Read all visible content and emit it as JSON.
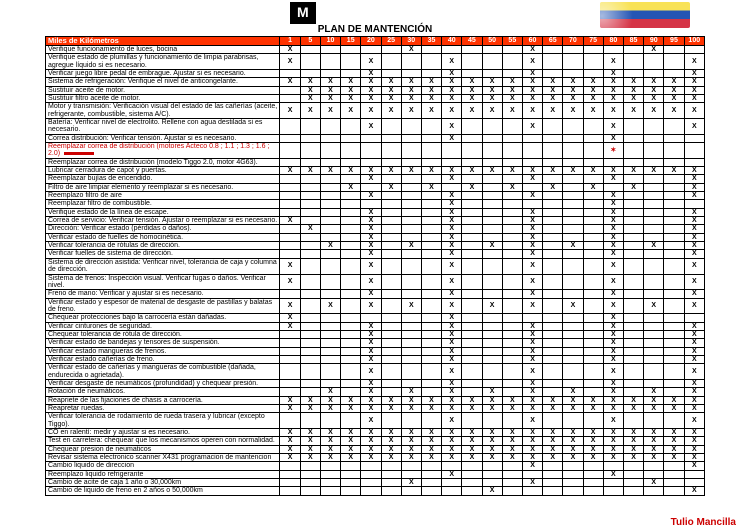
{
  "title": "PLAN DE MANTENCIÓN",
  "header_label": "Miles de Kilómetros",
  "km_cols": [
    "1",
    "5",
    "10",
    "15",
    "20",
    "25",
    "30",
    "35",
    "40",
    "45",
    "50",
    "55",
    "60",
    "65",
    "70",
    "75",
    "80",
    "85",
    "90",
    "95",
    "100"
  ],
  "footer": "Tulio Mancilla",
  "colors": {
    "header_bg": "#ff3300",
    "highlight_text": "#cc0000"
  },
  "rows": [
    {
      "desc": "Verifique funcionamiento de luces, bocina",
      "marks": [
        "X",
        "",
        "",
        "",
        "",
        "",
        "X",
        "",
        "",
        "",
        "",
        "",
        "X",
        "",
        "",
        "",
        "",
        "",
        "X",
        "",
        ""
      ]
    },
    {
      "desc": "Verifique estado de plumillas y funcionamiento de limpia parabrisas, agregue líquido si es necesario.",
      "marks": [
        "X",
        "",
        "",
        "",
        "X",
        "",
        "",
        "",
        "X",
        "",
        "",
        "",
        "X",
        "",
        "",
        "",
        "X",
        "",
        "",
        "",
        "X"
      ]
    },
    {
      "desc": "Verificar juego libre pedal de embrague. Ajustar si es necesario.",
      "marks": [
        "",
        "",
        "",
        "",
        "X",
        "",
        "",
        "",
        "X",
        "",
        "",
        "",
        "X",
        "",
        "",
        "",
        "X",
        "",
        "",
        "",
        "X"
      ]
    },
    {
      "desc": "Sistema de refrigeración: Verifique el nivel de anticongelante.",
      "marks": [
        "X",
        "X",
        "X",
        "X",
        "X",
        "X",
        "X",
        "X",
        "X",
        "X",
        "X",
        "X",
        "X",
        "X",
        "X",
        "X",
        "X",
        "X",
        "X",
        "X",
        "X"
      ]
    },
    {
      "desc": "Sustituir aceite de motor.",
      "marks": [
        "",
        "X",
        "X",
        "X",
        "X",
        "X",
        "X",
        "X",
        "X",
        "X",
        "X",
        "X",
        "X",
        "X",
        "X",
        "X",
        "X",
        "X",
        "X",
        "X",
        "X"
      ]
    },
    {
      "desc": "Sustituir filtro aceite de motor.",
      "marks": [
        "",
        "X",
        "X",
        "X",
        "X",
        "X",
        "X",
        "X",
        "X",
        "X",
        "X",
        "X",
        "X",
        "X",
        "X",
        "X",
        "X",
        "X",
        "X",
        "X",
        "X"
      ]
    },
    {
      "desc": "Motor y transmisión: Verificación visual del estado de las cañerías (aceite, refrigerante, combustible, sistema A/C).",
      "marks": [
        "X",
        "X",
        "X",
        "X",
        "X",
        "X",
        "X",
        "X",
        "X",
        "X",
        "X",
        "X",
        "X",
        "X",
        "X",
        "X",
        "X",
        "X",
        "X",
        "X",
        "X"
      ]
    },
    {
      "desc": "Batería: Verificar nivel de electrolito. Rellene con agua destilada si es necesario.",
      "marks": [
        "",
        "",
        "",
        "",
        "X",
        "",
        "",
        "",
        "X",
        "",
        "",
        "",
        "X",
        "",
        "",
        "",
        "X",
        "",
        "",
        "",
        "X"
      ]
    },
    {
      "desc": "Correa distribución: Verificar tensión. Ajustar si es necesario.",
      "marks": [
        "",
        "",
        "",
        "",
        "",
        "",
        "",
        "",
        "X",
        "",
        "",
        "",
        "",
        "",
        "",
        "",
        "X",
        "",
        "",
        "",
        ""
      ]
    },
    {
      "desc": "Reemplazar correa de distribución (motores Acteco 0.8 ; 1.1 ; 1.3 ; 1.6 ; 2.0)",
      "hl": true,
      "redline": true,
      "marks": [
        "",
        "",
        "",
        "",
        "",
        "",
        "",
        "",
        "",
        "",
        "",
        "",
        "",
        "",
        "",
        "",
        "*",
        "",
        "",
        "",
        ""
      ]
    },
    {
      "desc": "Reemplazar correa de distribución (modelo Tiggo 2.0, motor 4G63).",
      "marks": [
        "",
        "",
        "",
        "",
        "",
        "",
        "",
        "",
        "",
        "",
        "",
        "",
        "",
        "",
        "",
        "",
        "",
        "",
        "",
        "",
        ""
      ]
    },
    {
      "desc": "Lubricar cerradura de capot y puertas.",
      "marks": [
        "X",
        "X",
        "X",
        "X",
        "X",
        "X",
        "X",
        "X",
        "X",
        "X",
        "X",
        "X",
        "X",
        "X",
        "X",
        "X",
        "X",
        "X",
        "X",
        "X",
        "X"
      ]
    },
    {
      "desc": "Reemplazar bujías de encendido.",
      "marks": [
        "",
        "",
        "",
        "",
        "X",
        "",
        "",
        "",
        "X",
        "",
        "",
        "",
        "X",
        "",
        "",
        "",
        "X",
        "",
        "",
        "",
        "X"
      ]
    },
    {
      "desc": "Filtro de aire limpiar elemento y reemplazar si es necesario.",
      "marks": [
        "",
        "",
        "",
        "X",
        "",
        "X",
        "",
        "X",
        "",
        "X",
        "",
        "X",
        "",
        "X",
        "",
        "X",
        "",
        "X",
        "",
        "",
        "X"
      ]
    },
    {
      "desc": "Reemplazo filtro de aire",
      "marks": [
        "",
        "",
        "",
        "",
        "X",
        "",
        "",
        "",
        "X",
        "",
        "",
        "",
        "X",
        "",
        "",
        "",
        "X",
        "",
        "",
        "",
        "X"
      ]
    },
    {
      "desc": "Reemplazar filtro de combustible.",
      "marks": [
        "",
        "",
        "",
        "",
        "",
        "",
        "",
        "",
        "X",
        "",
        "",
        "",
        "",
        "",
        "",
        "",
        "X",
        "",
        "",
        "",
        ""
      ]
    },
    {
      "desc": "Verifique estado de la línea de escape.",
      "marks": [
        "",
        "",
        "",
        "",
        "X",
        "",
        "",
        "",
        "X",
        "",
        "",
        "",
        "X",
        "",
        "",
        "",
        "X",
        "",
        "",
        "",
        "X"
      ]
    },
    {
      "desc": "Correa de servicio: Verificar tensión. Ajustar o reemplazar si es necesario.",
      "marks": [
        "X",
        "",
        "",
        "",
        "X",
        "",
        "",
        "",
        "X",
        "",
        "",
        "",
        "X",
        "",
        "",
        "",
        "X",
        "",
        "",
        "",
        "X"
      ]
    },
    {
      "desc": "Dirección: Verificar estado (pérdidas o daños).",
      "marks": [
        "",
        "X",
        "",
        "",
        "X",
        "",
        "",
        "",
        "X",
        "",
        "",
        "",
        "X",
        "",
        "",
        "",
        "X",
        "",
        "",
        "",
        "X"
      ]
    },
    {
      "desc": "Verificar estado de fuelles de homocinética.",
      "marks": [
        "",
        "",
        "",
        "",
        "X",
        "",
        "",
        "",
        "X",
        "",
        "",
        "",
        "X",
        "",
        "",
        "",
        "X",
        "",
        "",
        "",
        "X"
      ]
    },
    {
      "desc": "Verificar tolerancia de rótulas de dirección.",
      "marks": [
        "",
        "",
        "X",
        "",
        "X",
        "",
        "X",
        "",
        "X",
        "",
        "X",
        "",
        "X",
        "",
        "X",
        "",
        "X",
        "",
        "X",
        "",
        "X"
      ]
    },
    {
      "desc": "Verificar fuelles de sistema de dirección.",
      "marks": [
        "",
        "",
        "",
        "",
        "X",
        "",
        "",
        "",
        "X",
        "",
        "",
        "",
        "X",
        "",
        "",
        "",
        "X",
        "",
        "",
        "",
        "X"
      ]
    },
    {
      "desc": "Sistema de dirección asistida: Verificar nivel, tolerancia de caja y columna de dirección.",
      "marks": [
        "X",
        "",
        "",
        "",
        "X",
        "",
        "",
        "",
        "X",
        "",
        "",
        "",
        "X",
        "",
        "",
        "",
        "X",
        "",
        "",
        "",
        "X"
      ]
    },
    {
      "desc": "Sistema de frenos: Inspección visual. Verificar fugas o daños. Verificar nivel.",
      "marks": [
        "X",
        "",
        "",
        "",
        "X",
        "",
        "",
        "",
        "X",
        "",
        "",
        "",
        "X",
        "",
        "",
        "",
        "X",
        "",
        "",
        "",
        "X"
      ]
    },
    {
      "desc": "Freno de mano: Verificar y ajustar si es necesario.",
      "marks": [
        "",
        "",
        "",
        "",
        "X",
        "",
        "",
        "",
        "X",
        "",
        "",
        "",
        "X",
        "",
        "",
        "",
        "X",
        "",
        "",
        "",
        "X"
      ]
    },
    {
      "desc": "Verificar estado y espesor de material de desgaste de pastillas y balatas de freno.",
      "marks": [
        "X",
        "",
        "X",
        "",
        "X",
        "",
        "X",
        "",
        "X",
        "",
        "X",
        "",
        "X",
        "",
        "X",
        "",
        "X",
        "",
        "X",
        "",
        "X"
      ]
    },
    {
      "desc": "Chequear protecciones bajo la carrocería están dañadas.",
      "marks": [
        "X",
        "",
        "",
        "",
        "",
        "",
        "",
        "",
        "X",
        "",
        "",
        "",
        "",
        "",
        "",
        "",
        "X",
        "",
        "",
        "",
        ""
      ]
    },
    {
      "desc": "Verificar cinturones de seguridad.",
      "marks": [
        "X",
        "",
        "",
        "",
        "X",
        "",
        "",
        "",
        "X",
        "",
        "",
        "",
        "X",
        "",
        "",
        "",
        "X",
        "",
        "",
        "",
        "X"
      ]
    },
    {
      "desc": "Chequear tolerancia de rótula de dirección.",
      "marks": [
        "",
        "",
        "",
        "",
        "X",
        "",
        "",
        "",
        "X",
        "",
        "",
        "",
        "X",
        "",
        "",
        "",
        "X",
        "",
        "",
        "",
        "X"
      ]
    },
    {
      "desc": "Verificar estado de bandejas y tensores de suspensión.",
      "marks": [
        "",
        "",
        "",
        "",
        "X",
        "",
        "",
        "",
        "X",
        "",
        "",
        "",
        "X",
        "",
        "",
        "",
        "X",
        "",
        "",
        "",
        "X"
      ]
    },
    {
      "desc": "Verificar estado mangueras de frenos.",
      "marks": [
        "",
        "",
        "",
        "",
        "X",
        "",
        "",
        "",
        "X",
        "",
        "",
        "",
        "X",
        "",
        "",
        "",
        "X",
        "",
        "",
        "",
        "X"
      ]
    },
    {
      "desc": "Verificar estado cañerías de freno.",
      "marks": [
        "",
        "",
        "",
        "",
        "X",
        "",
        "",
        "",
        "X",
        "",
        "",
        "",
        "X",
        "",
        "",
        "",
        "X",
        "",
        "",
        "",
        "X"
      ]
    },
    {
      "desc": "Verificar estado de cañerías y mangueras de combustible (dañada, endurecida o agrietada).",
      "marks": [
        "",
        "",
        "",
        "",
        "X",
        "",
        "",
        "",
        "X",
        "",
        "",
        "",
        "X",
        "",
        "",
        "",
        "X",
        "",
        "",
        "",
        "X"
      ]
    },
    {
      "desc": "Verificar desgaste de neumáticos (profundidad) y chequear presión.",
      "marks": [
        "",
        "",
        "",
        "",
        "X",
        "",
        "",
        "",
        "X",
        "",
        "",
        "",
        "X",
        "",
        "",
        "",
        "X",
        "",
        "",
        "",
        "X"
      ]
    },
    {
      "desc": "Rotación de neumáticos.",
      "marks": [
        "",
        "",
        "X",
        "",
        "X",
        "",
        "X",
        "",
        "X",
        "",
        "X",
        "",
        "X",
        "",
        "X",
        "",
        "X",
        "",
        "X",
        "",
        "X"
      ]
    },
    {
      "desc": "Reapriete de las fijaciones de chasis a carrocería.",
      "marks": [
        "X",
        "X",
        "X",
        "X",
        "X",
        "X",
        "X",
        "X",
        "X",
        "X",
        "X",
        "X",
        "X",
        "X",
        "X",
        "X",
        "X",
        "X",
        "X",
        "X",
        "X"
      ]
    },
    {
      "desc": "Reapretar ruedas.",
      "marks": [
        "X",
        "X",
        "X",
        "X",
        "X",
        "X",
        "X",
        "X",
        "X",
        "X",
        "X",
        "X",
        "X",
        "X",
        "X",
        "X",
        "X",
        "X",
        "X",
        "X",
        "X"
      ]
    },
    {
      "desc": "Verificar tolerancia de rodamiento de rueda trasera y lubricar (excepto Tiggo).",
      "marks": [
        "",
        "",
        "",
        "",
        "X",
        "",
        "",
        "",
        "X",
        "",
        "",
        "",
        "X",
        "",
        "",
        "",
        "X",
        "",
        "",
        "",
        "X"
      ]
    },
    {
      "desc": "CO en ralentí:  medir y ajustar si es necesario.",
      "marks": [
        "X",
        "X",
        "X",
        "X",
        "X",
        "X",
        "X",
        "X",
        "X",
        "X",
        "X",
        "X",
        "X",
        "X",
        "X",
        "X",
        "X",
        "X",
        "X",
        "X",
        "X"
      ]
    },
    {
      "desc": "Test en carretera: chequear que los mecanismos operen con normalidad.",
      "marks": [
        "X",
        "X",
        "X",
        "X",
        "X",
        "X",
        "X",
        "X",
        "X",
        "X",
        "X",
        "X",
        "X",
        "X",
        "X",
        "X",
        "X",
        "X",
        "X",
        "X",
        "X"
      ]
    },
    {
      "desc": "Chequear presion de neumaticos",
      "marks": [
        "X",
        "X",
        "X",
        "X",
        "X",
        "X",
        "X",
        "X",
        "X",
        "X",
        "X",
        "X",
        "X",
        "X",
        "X",
        "X",
        "X",
        "X",
        "X",
        "X",
        "X"
      ]
    },
    {
      "desc": "Revisar sistema electronico scanner X431 programacion de mantencion",
      "marks": [
        "X",
        "X",
        "X",
        "X",
        "X",
        "X",
        "X",
        "X",
        "X",
        "X",
        "X",
        "X",
        "X",
        "X",
        "X",
        "X",
        "X",
        "X",
        "X",
        "X",
        "X"
      ]
    },
    {
      "desc": "Cambio liquido de direccion",
      "marks": [
        "",
        "",
        "",
        "",
        "",
        "",
        "",
        "",
        "",
        "",
        "",
        "",
        "X",
        "",
        "",
        "",
        "",
        "",
        "",
        "",
        "X"
      ]
    },
    {
      "desc": "Reemplazo liquido refrigerante",
      "marks": [
        "",
        "",
        "",
        "",
        "",
        "",
        "",
        "",
        "X",
        "",
        "",
        "",
        "",
        "",
        "",
        "",
        "X",
        "",
        "",
        "",
        ""
      ]
    },
    {
      "desc": "Cambio de acite de caja 1 año o 30,000km",
      "marks": [
        "",
        "",
        "",
        "",
        "",
        "",
        "X",
        "",
        "",
        "",
        "",
        "",
        "X",
        "",
        "",
        "",
        "",
        "",
        "X",
        "",
        ""
      ]
    },
    {
      "desc": "Cambio de liquido de freno en 2 años o  50,000km",
      "marks": [
        "",
        "",
        "",
        "",
        "",
        "",
        "",
        "",
        "",
        "",
        "X",
        "",
        "",
        "",
        "",
        "",
        "",
        "",
        "",
        "",
        "X"
      ]
    }
  ]
}
